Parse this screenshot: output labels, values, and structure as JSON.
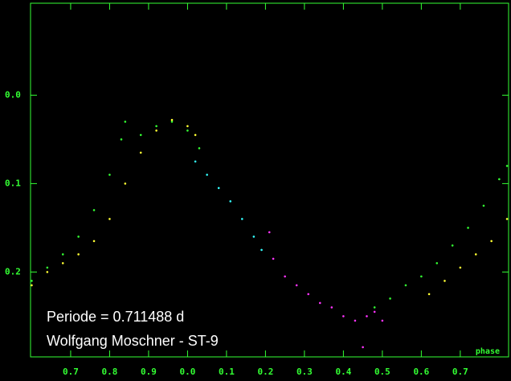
{
  "chart_data": {
    "type": "scatter",
    "annotations": [
      "Periode = 0.711488 d",
      "Wolfgang Moschner - ST-9"
    ],
    "x_label": "phase",
    "xlim": [
      0.597,
      1.824
    ],
    "ylim": [
      0.296,
      -0.104
    ],
    "y_inverted": true,
    "xticks": [
      {
        "value": 0.7,
        "label": "0.7"
      },
      {
        "value": 0.8,
        "label": "0.8"
      },
      {
        "value": 0.9,
        "label": "0.9"
      },
      {
        "value": 1.0,
        "label": "0.0"
      },
      {
        "value": 1.1,
        "label": "0.1"
      },
      {
        "value": 1.2,
        "label": "0.2"
      },
      {
        "value": 1.3,
        "label": "0.3"
      },
      {
        "value": 1.4,
        "label": "0.4"
      },
      {
        "value": 1.5,
        "label": "0.5"
      },
      {
        "value": 1.6,
        "label": "0.6"
      },
      {
        "value": 1.7,
        "label": "0.7"
      }
    ],
    "yticks": [
      {
        "value": 0.0,
        "label": "0.0"
      },
      0.1,
      0.2
    ],
    "frame_color": "#33ff33",
    "series": [
      {
        "color": "#33ff33",
        "x": [
          0.6,
          0.64,
          0.68,
          0.72,
          0.76,
          0.8,
          0.83,
          0.84,
          0.88,
          0.92,
          0.96,
          1.0,
          1.03,
          1.48,
          1.52,
          1.56,
          1.6,
          1.64,
          1.68,
          1.72,
          1.76,
          1.8,
          1.82
        ],
        "values": [
          0.21,
          0.195,
          0.18,
          0.16,
          0.13,
          0.09,
          0.05,
          0.03,
          0.045,
          0.035,
          0.03,
          0.04,
          0.06,
          0.24,
          0.23,
          0.215,
          0.205,
          0.19,
          0.17,
          0.15,
          0.125,
          0.095,
          0.08
        ]
      },
      {
        "color": "#ffff33",
        "x": [
          0.6,
          0.64,
          0.68,
          0.72,
          0.76,
          0.8,
          0.84,
          0.88,
          0.92,
          0.96,
          1.0,
          1.02,
          1.62,
          1.66,
          1.7,
          1.74,
          1.78,
          1.82
        ],
        "values": [
          0.215,
          0.2,
          0.19,
          0.18,
          0.165,
          0.14,
          0.1,
          0.065,
          0.04,
          0.028,
          0.035,
          0.045,
          0.225,
          0.21,
          0.195,
          0.18,
          0.165,
          0.14
        ]
      },
      {
        "color": "#33ffff",
        "x": [
          1.02,
          1.05,
          1.08,
          1.11,
          1.14,
          1.17,
          1.19
        ],
        "values": [
          0.075,
          0.09,
          0.105,
          0.12,
          0.14,
          0.16,
          0.175
        ]
      },
      {
        "color": "#ff33ff",
        "x": [
          1.21,
          1.22,
          1.25,
          1.28,
          1.31,
          1.34,
          1.37,
          1.4,
          1.43,
          1.45,
          1.46,
          1.48,
          1.5
        ],
        "values": [
          0.155,
          0.185,
          0.205,
          0.215,
          0.225,
          0.235,
          0.24,
          0.25,
          0.255,
          0.285,
          0.25,
          0.245,
          0.255
        ]
      }
    ]
  }
}
